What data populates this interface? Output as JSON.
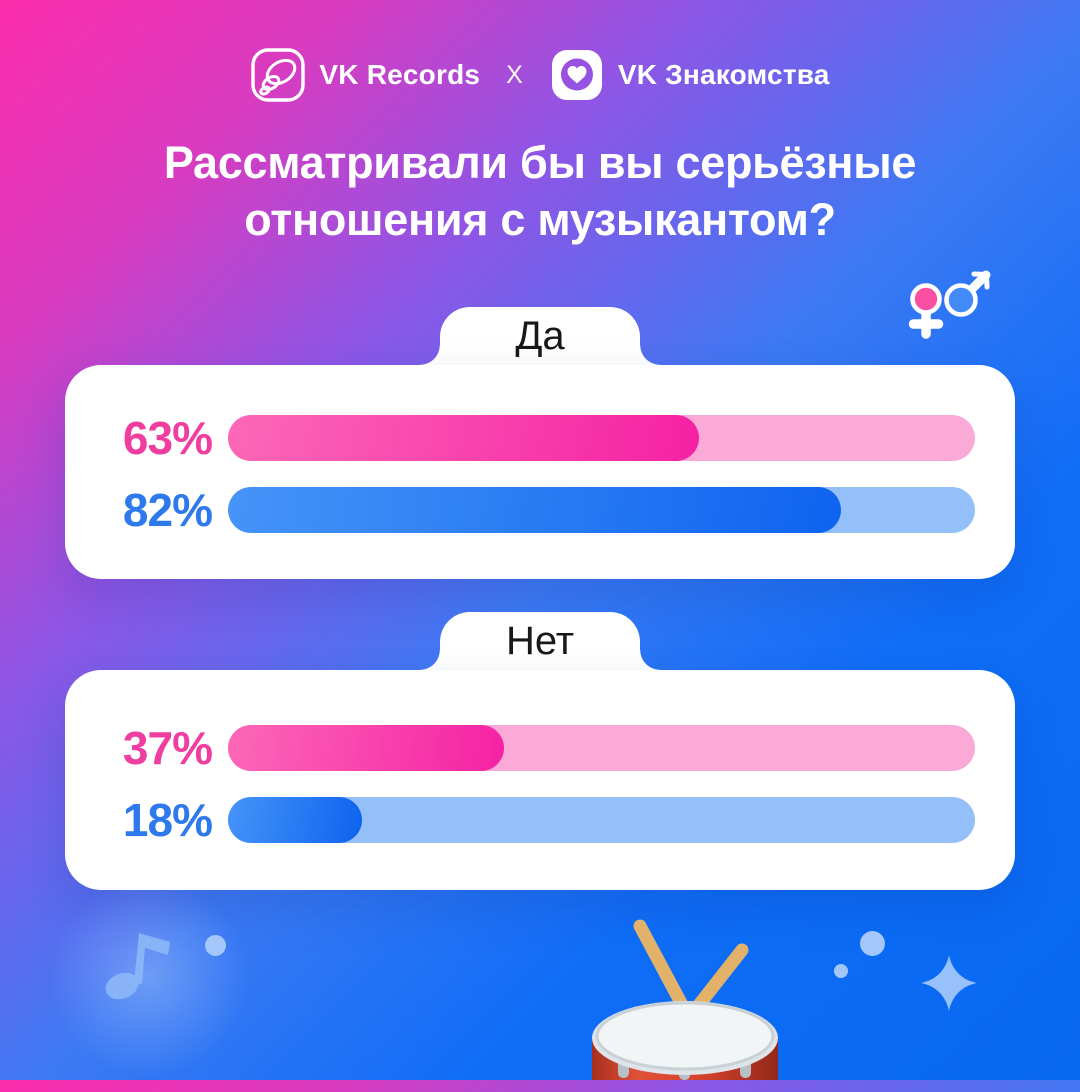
{
  "header": {
    "records_label": "VK Records",
    "separator": "X",
    "dating_label": "VK Знакомства"
  },
  "title": {
    "line1": "Рассматривали бы вы серьёзные",
    "line2": "отношения с музыкантом?"
  },
  "cards": [
    {
      "label": "Да",
      "rows": [
        {
          "series": "female",
          "value": "63%",
          "percent": 63
        },
        {
          "series": "male",
          "value": "82%",
          "percent": 82
        }
      ]
    },
    {
      "label": "Нет",
      "rows": [
        {
          "series": "female",
          "value": "37%",
          "percent": 37
        },
        {
          "series": "male",
          "value": "18%",
          "percent": 18
        }
      ]
    }
  ],
  "colors": {
    "background_top_left": "#fc2dac",
    "background_bottom_right": "#0768f2",
    "female_accent": "#ef3da0",
    "female_fill": "#f521a4",
    "female_track": "#fba9d6",
    "male_accent": "#2e79ec",
    "male_fill": "#0e63ef",
    "male_track": "#93c0f9",
    "card_background": "#ffffff"
  },
  "icons": {
    "vk_records_app": "vinyl-speaker outline app icon",
    "vk_dating_app": "heart-in-circle app icon",
    "female_symbol": "pink female gender sign",
    "male_symbol": "blue male gender sign",
    "decor": [
      "music-note",
      "dots",
      "sparkle",
      "drum-emoji"
    ]
  },
  "chart_data": {
    "type": "bar",
    "title": "Рассматривали бы вы серьёзные отношения с музыкантом?",
    "categories": [
      "Да",
      "Нет"
    ],
    "series": [
      {
        "name": "female",
        "color": "#f521a4",
        "values": [
          63,
          37
        ]
      },
      {
        "name": "male",
        "color": "#0e63ef",
        "values": [
          82,
          18
        ]
      }
    ],
    "value_unit": "%",
    "value_range": [
      0,
      100
    ],
    "legend_position": "top-right",
    "grid": false,
    "orientation": "horizontal"
  }
}
